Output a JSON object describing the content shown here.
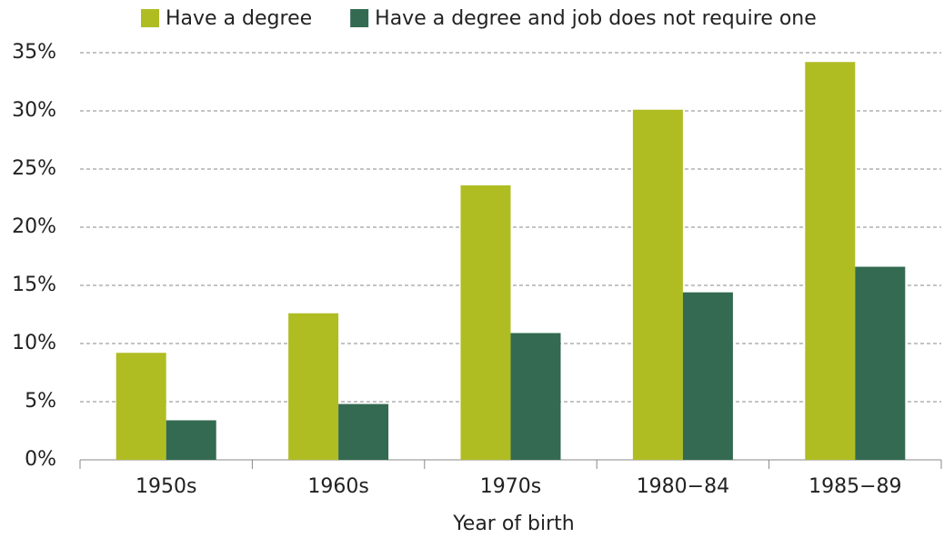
{
  "chart_data": {
    "type": "bar",
    "categories": [
      "1950s",
      "1960s",
      "1970s",
      "1980−84",
      "1985−89"
    ],
    "series": [
      {
        "name": "Have a degree",
        "color": "#afbd22",
        "values": [
          9.2,
          12.6,
          23.6,
          30.1,
          34.2
        ]
      },
      {
        "name": "Have a degree and job does not require one",
        "color": "#336a51",
        "values": [
          3.4,
          4.8,
          10.9,
          14.4,
          16.6
        ]
      }
    ],
    "x_label": "Year of birth",
    "ylim": [
      0,
      35
    ],
    "yticks": [
      {
        "value": 0,
        "label": "0%"
      },
      {
        "value": 5,
        "label": "5%"
      },
      {
        "value": 10,
        "label": "10%"
      },
      {
        "value": 15,
        "label": "15%"
      },
      {
        "value": 20,
        "label": "20%"
      },
      {
        "value": 25,
        "label": "25%"
      },
      {
        "value": 30,
        "label": "30%"
      },
      {
        "value": 35,
        "label": "35%"
      }
    ],
    "grid": true
  }
}
